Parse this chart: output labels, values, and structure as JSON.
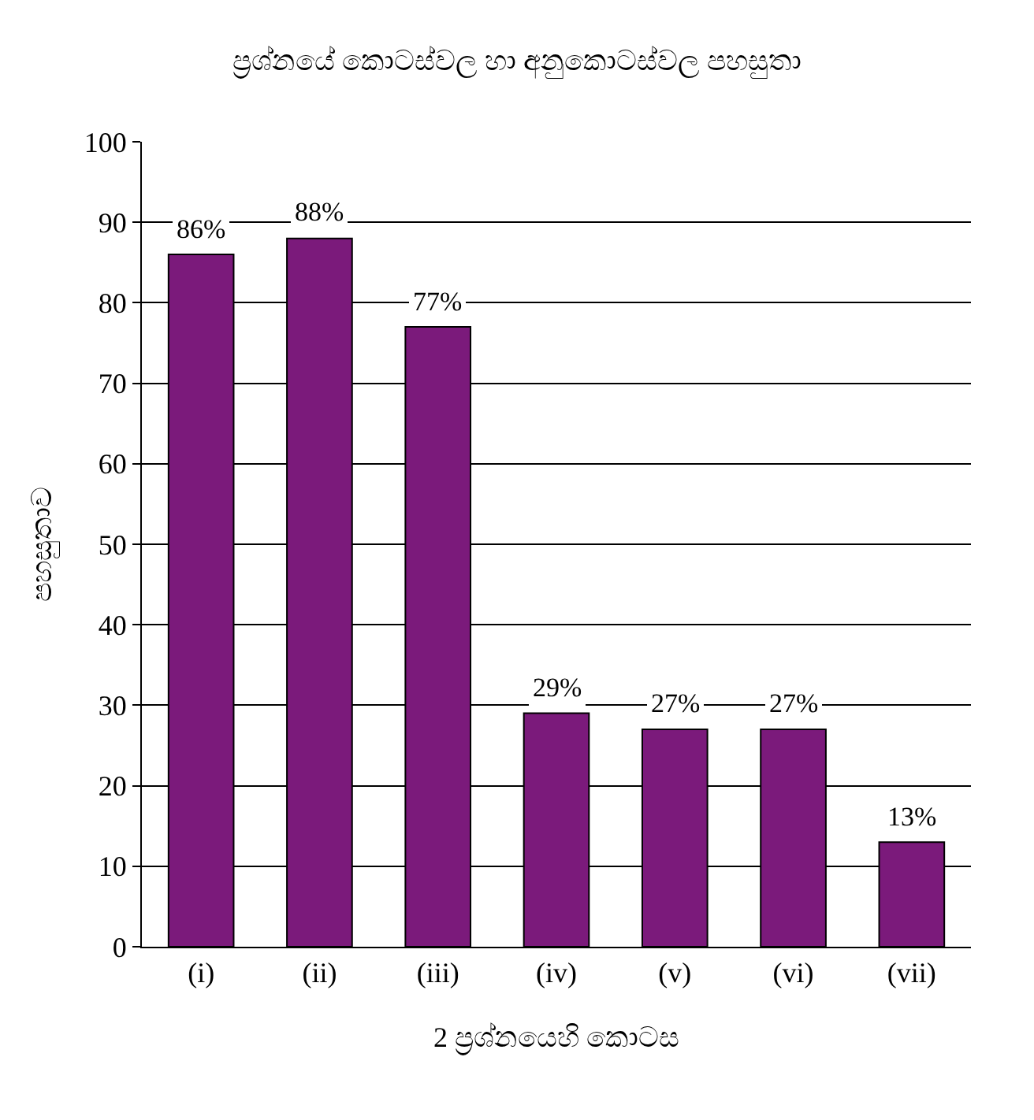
{
  "chart_data": {
    "type": "bar",
    "title": "ප්‍රශ්නයේ කොටස්වල හා අනුකොටස්වල පහසුතා",
    "xlabel": "2 ප්‍රශ්නයෙහි කොටස",
    "ylabel": "පහසුතාව",
    "categories": [
      "(i)",
      "(ii)",
      "(iii)",
      "(iv)",
      "(v)",
      "(vi)",
      "(vii)"
    ],
    "values": [
      86,
      88,
      77,
      29,
      27,
      27,
      13
    ],
    "value_labels": [
      "86%",
      "88%",
      "77%",
      "29%",
      "27%",
      "27%",
      "13%"
    ],
    "color": "#7b1a7b",
    "ylim": [
      0,
      100
    ],
    "yticks": [
      0,
      10,
      20,
      30,
      40,
      50,
      60,
      70,
      80,
      90,
      100
    ],
    "grid": "y",
    "legend": false
  }
}
